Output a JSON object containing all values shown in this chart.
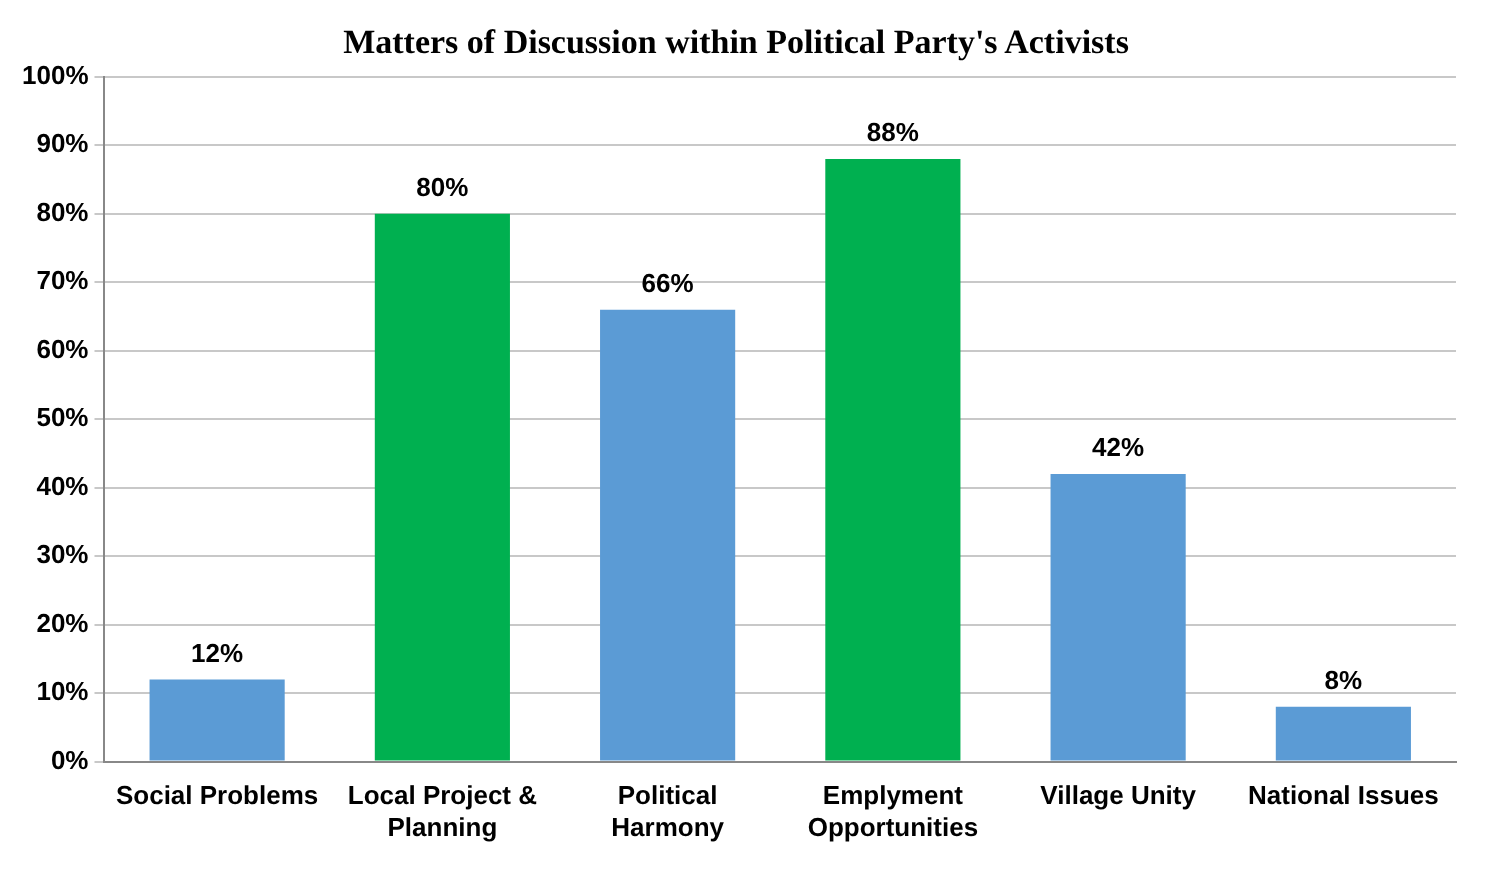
{
  "chart_data": {
    "type": "bar",
    "title": "Matters of Discussion within Political Party's Activists",
    "categories": [
      [
        "Social Problems"
      ],
      [
        "Local Project &",
        "Planning"
      ],
      [
        "Political",
        "Harmony"
      ],
      [
        "Emplyment",
        "Opportunities"
      ],
      [
        "Village Unity"
      ],
      [
        "National Issues"
      ]
    ],
    "values": [
      12,
      80,
      66,
      88,
      42,
      8
    ],
    "colors": [
      "#5b9bd5",
      "#00b050",
      "#5b9bd5",
      "#00b050",
      "#5b9bd5",
      "#5b9bd5"
    ],
    "value_labels": [
      "12%",
      "80%",
      "66%",
      "88%",
      "42%",
      "8%"
    ],
    "ylim": [
      0,
      100
    ],
    "yticks": [
      {
        "value": 0,
        "label": "0%"
      },
      {
        "value": 10,
        "label": "10%"
      },
      {
        "value": 20,
        "label": "20%"
      },
      {
        "value": 30,
        "label": "30%"
      },
      {
        "value": 40,
        "label": "40%"
      },
      {
        "value": 50,
        "label": "50%"
      },
      {
        "value": 60,
        "label": "60%"
      },
      {
        "value": 70,
        "label": "70%"
      },
      {
        "value": 80,
        "label": "80%"
      },
      {
        "value": 90,
        "label": "90%"
      },
      {
        "value": 100,
        "label": "100%"
      }
    ],
    "grid": "y"
  }
}
